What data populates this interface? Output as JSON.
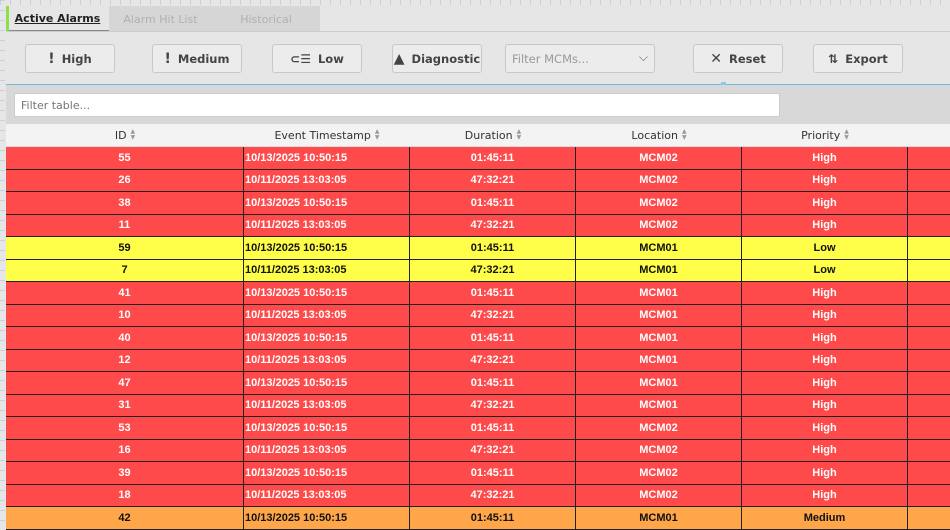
{
  "tabs": [
    {
      "label": "Active Alarms",
      "active": true
    },
    {
      "label": "Alarm Hit List"
    },
    {
      "label": "Historical"
    }
  ],
  "toolbar": {
    "high": {
      "label": "High",
      "icon": "exclamation-icon"
    },
    "medium": {
      "label": "Medium",
      "icon": "exclamation-icon"
    },
    "low": {
      "label": "Low",
      "icon": "low-list-icon"
    },
    "diagnostic": {
      "label": "Diagnostic",
      "icon": "warning-triangle-icon"
    },
    "mcm_filter": {
      "placeholder": "Filter MCMs..."
    },
    "reset": {
      "label": "Reset",
      "icon": "close-icon"
    },
    "export": {
      "label": "Export",
      "icon": "sort-arrows-icon"
    }
  },
  "filter": {
    "placeholder": "Filter table..."
  },
  "table": {
    "columns": [
      "ID",
      "Event Timestamp",
      "Duration",
      "Location",
      "Priority",
      ""
    ],
    "rows": [
      [
        "55",
        "10/13/2025 10:50:15",
        "01:45:11",
        "MCM02",
        "High"
      ],
      [
        "26",
        "10/11/2025 13:03:05",
        "47:32:21",
        "MCM02",
        "High"
      ],
      [
        "38",
        "10/13/2025 10:50:15",
        "01:45:11",
        "MCM02",
        "High"
      ],
      [
        "11",
        "10/11/2025 13:03:05",
        "47:32:21",
        "MCM02",
        "High"
      ],
      [
        "59",
        "10/13/2025 10:50:15",
        "01:45:11",
        "MCM01",
        "Low"
      ],
      [
        "7",
        "10/11/2025 13:03:05",
        "47:32:21",
        "MCM01",
        "Low"
      ],
      [
        "41",
        "10/13/2025 10:50:15",
        "01:45:11",
        "MCM01",
        "High"
      ],
      [
        "10",
        "10/11/2025 13:03:05",
        "47:32:21",
        "MCM01",
        "High"
      ],
      [
        "40",
        "10/13/2025 10:50:15",
        "01:45:11",
        "MCM01",
        "High"
      ],
      [
        "12",
        "10/11/2025 13:03:05",
        "47:32:21",
        "MCM01",
        "High"
      ],
      [
        "47",
        "10/13/2025 10:50:15",
        "01:45:11",
        "MCM01",
        "High"
      ],
      [
        "31",
        "10/11/2025 13:03:05",
        "47:32:21",
        "MCM01",
        "High"
      ],
      [
        "53",
        "10/13/2025 10:50:15",
        "01:45:11",
        "MCM02",
        "High"
      ],
      [
        "16",
        "10/11/2025 13:03:05",
        "47:32:21",
        "MCM02",
        "High"
      ],
      [
        "39",
        "10/13/2025 10:50:15",
        "01:45:11",
        "MCM02",
        "High"
      ],
      [
        "18",
        "10/11/2025 13:03:05",
        "47:32:21",
        "MCM02",
        "High"
      ],
      [
        "42",
        "10/13/2025 10:50:15",
        "01:45:11",
        "MCM01",
        "Medium"
      ]
    ]
  },
  "colors": {
    "High": "#fe4a4a",
    "Low": "#ffff4a",
    "Medium": "#ffa64a",
    "accent": "#6fb8e0"
  }
}
